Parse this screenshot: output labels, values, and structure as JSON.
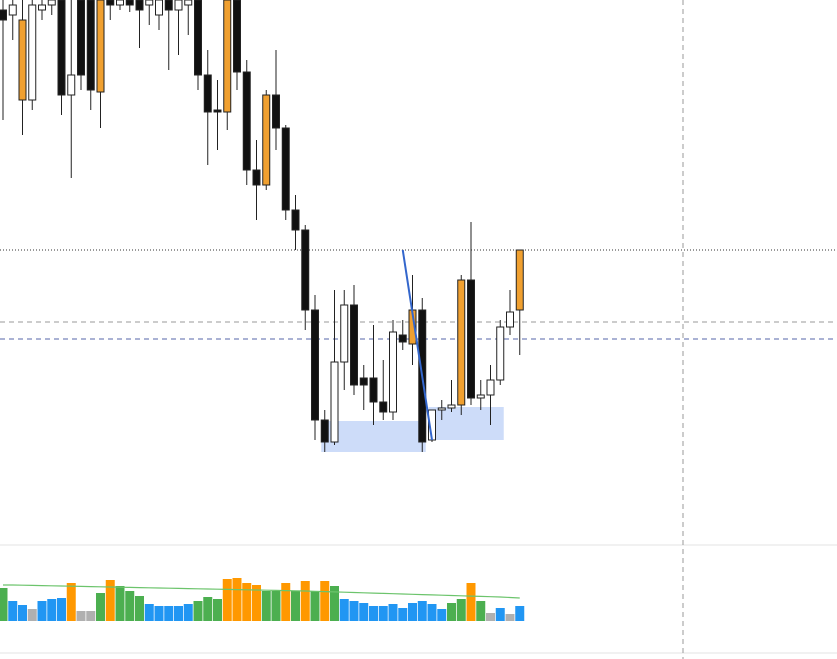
{
  "chart_data": {
    "type": "candlestick",
    "ylim": [
      0,
      545
    ],
    "open": [
      535,
      530,
      445,
      445,
      535,
      540,
      545,
      450,
      545,
      545,
      453,
      545,
      540,
      545,
      545,
      540,
      530,
      545,
      535,
      540,
      545,
      470,
      435,
      433,
      545,
      473,
      375,
      360,
      450,
      417,
      335,
      315,
      235,
      125,
      103,
      183,
      240,
      167,
      167,
      143,
      133,
      210,
      201,
      235,
      105,
      135,
      137,
      140,
      265,
      147,
      150,
      165,
      218,
      235
    ],
    "close": [
      525,
      540,
      525,
      540,
      540,
      545,
      450,
      470,
      470,
      455,
      545,
      540,
      545,
      540,
      535,
      545,
      545,
      535,
      545,
      545,
      470,
      433,
      433,
      545,
      473,
      375,
      360,
      450,
      417,
      335,
      315,
      235,
      125,
      103,
      183,
      240,
      160,
      160,
      143,
      133,
      213,
      203,
      235,
      103,
      135,
      137,
      140,
      265,
      147,
      150,
      165,
      218,
      233,
      295
    ],
    "high": [
      545,
      545,
      545,
      545,
      545,
      545,
      545,
      545,
      545,
      545,
      545,
      545,
      545,
      545,
      545,
      545,
      545,
      545,
      545,
      545,
      545,
      495,
      465,
      545,
      545,
      485,
      405,
      455,
      495,
      420,
      350,
      320,
      250,
      135,
      255,
      255,
      260,
      180,
      220,
      185,
      225,
      225,
      270,
      247,
      135,
      145,
      165,
      270,
      323,
      165,
      180,
      225,
      255,
      295
    ],
    "low": [
      425,
      505,
      410,
      435,
      525,
      530,
      430,
      367,
      455,
      435,
      417,
      525,
      535,
      533,
      497,
      520,
      515,
      475,
      490,
      510,
      455,
      380,
      395,
      415,
      455,
      360,
      325,
      355,
      395,
      325,
      295,
      215,
      105,
      93,
      100,
      155,
      150,
      135,
      120,
      125,
      125,
      195,
      180,
      93,
      103,
      125,
      133,
      130,
      140,
      135,
      120,
      160,
      210,
      190
    ],
    "candle_colors": [
      "#111111",
      "#ffffff",
      "#f0a030",
      "#ffffff",
      "#ffffff",
      "#ffffff",
      "#111111",
      "#ffffff",
      "#111111",
      "#111111",
      "#f0a030",
      "#111111",
      "#ffffff",
      "#111111",
      "#111111",
      "#ffffff",
      "#ffffff",
      "#111111",
      "#ffffff",
      "#ffffff",
      "#111111",
      "#111111",
      "#111111",
      "#f0a030",
      "#111111",
      "#111111",
      "#111111",
      "#f0a030",
      "#111111",
      "#111111",
      "#111111",
      "#111111",
      "#111111",
      "#111111",
      "#ffffff",
      "#ffffff",
      "#111111",
      "#111111",
      "#111111",
      "#111111",
      "#ffffff",
      "#111111",
      "#f0a030",
      "#111111",
      "#ffffff",
      "#ffffff",
      "#ffffff",
      "#f0a030",
      "#111111",
      "#ffffff",
      "#ffffff",
      "#ffffff",
      "#ffffff",
      "#f0a030"
    ],
    "levels": [
      {
        "value": 295,
        "color": "#333333",
        "style": "dotted"
      },
      {
        "value": 223,
        "color": "#999999",
        "style": "dashed"
      },
      {
        "value": 206,
        "color": "#5566aa",
        "style": "dashed"
      }
    ],
    "zones": [
      {
        "from": 33,
        "to": 43,
        "top": 124,
        "bottom": 93,
        "color": "#c8d8f8"
      },
      {
        "from": 44,
        "to": 51,
        "top": 138,
        "bottom": 105,
        "color": "#c8d8f8"
      }
    ],
    "trendline": {
      "from": 41,
      "to": 44,
      "start": 295,
      "end": 105,
      "color": "#3366cc"
    },
    "volume_lim": [
      0,
      76
    ],
    "volume": [
      33,
      20,
      16,
      12,
      20,
      22,
      23,
      38,
      10,
      10,
      28,
      41,
      35,
      30,
      25,
      17,
      15,
      15,
      15,
      17,
      20,
      24,
      22,
      42,
      43,
      38,
      36,
      30,
      30,
      38,
      30,
      40,
      30,
      40,
      35,
      22,
      20,
      18,
      15,
      15,
      17,
      13,
      18,
      20,
      17,
      12,
      18,
      22,
      38,
      20,
      8,
      13,
      7,
      15
    ],
    "volume_colors": [
      "#4caf50",
      "#2196f3",
      "#2196f3",
      "#b0b0b0",
      "#2196f3",
      "#2196f3",
      "#2196f3",
      "#ff9800",
      "#b0b0b0",
      "#b0b0b0",
      "#4caf50",
      "#ff9800",
      "#4caf50",
      "#4caf50",
      "#4caf50",
      "#2196f3",
      "#2196f3",
      "#2196f3",
      "#2196f3",
      "#2196f3",
      "#4caf50",
      "#4caf50",
      "#4caf50",
      "#ff9800",
      "#ff9800",
      "#ff9800",
      "#ff9800",
      "#4caf50",
      "#4caf50",
      "#ff9800",
      "#4caf50",
      "#ff9800",
      "#4caf50",
      "#ff9800",
      "#4caf50",
      "#2196f3",
      "#2196f3",
      "#2196f3",
      "#2196f3",
      "#2196f3",
      "#2196f3",
      "#2196f3",
      "#2196f3",
      "#2196f3",
      "#2196f3",
      "#2196f3",
      "#4caf50",
      "#4caf50",
      "#ff9800",
      "#4caf50",
      "#b0b0b0",
      "#2196f3",
      "#b0b0b0",
      "#2196f3"
    ],
    "volume_ma": [
      36,
      36,
      35.8,
      35.6,
      35.4,
      35.2,
      35,
      34.8,
      34.6,
      34.4,
      34.2,
      34,
      33.8,
      33.6,
      33.4,
      33.2,
      33,
      32.8,
      32.6,
      32.4,
      32.2,
      32,
      31.8,
      31.6,
      31.4,
      31.2,
      31,
      30.8,
      30.6,
      30.4,
      30.2,
      30,
      29.7,
      29.4,
      29.1,
      28.8,
      28.5,
      28.2,
      27.9,
      27.6,
      27.3,
      27,
      26.7,
      26.4,
      26.1,
      25.8,
      25.5,
      25.2,
      24.9,
      24.6,
      24.3,
      24,
      23.5,
      23
    ],
    "volume_ma_color": "#6cc46c"
  }
}
